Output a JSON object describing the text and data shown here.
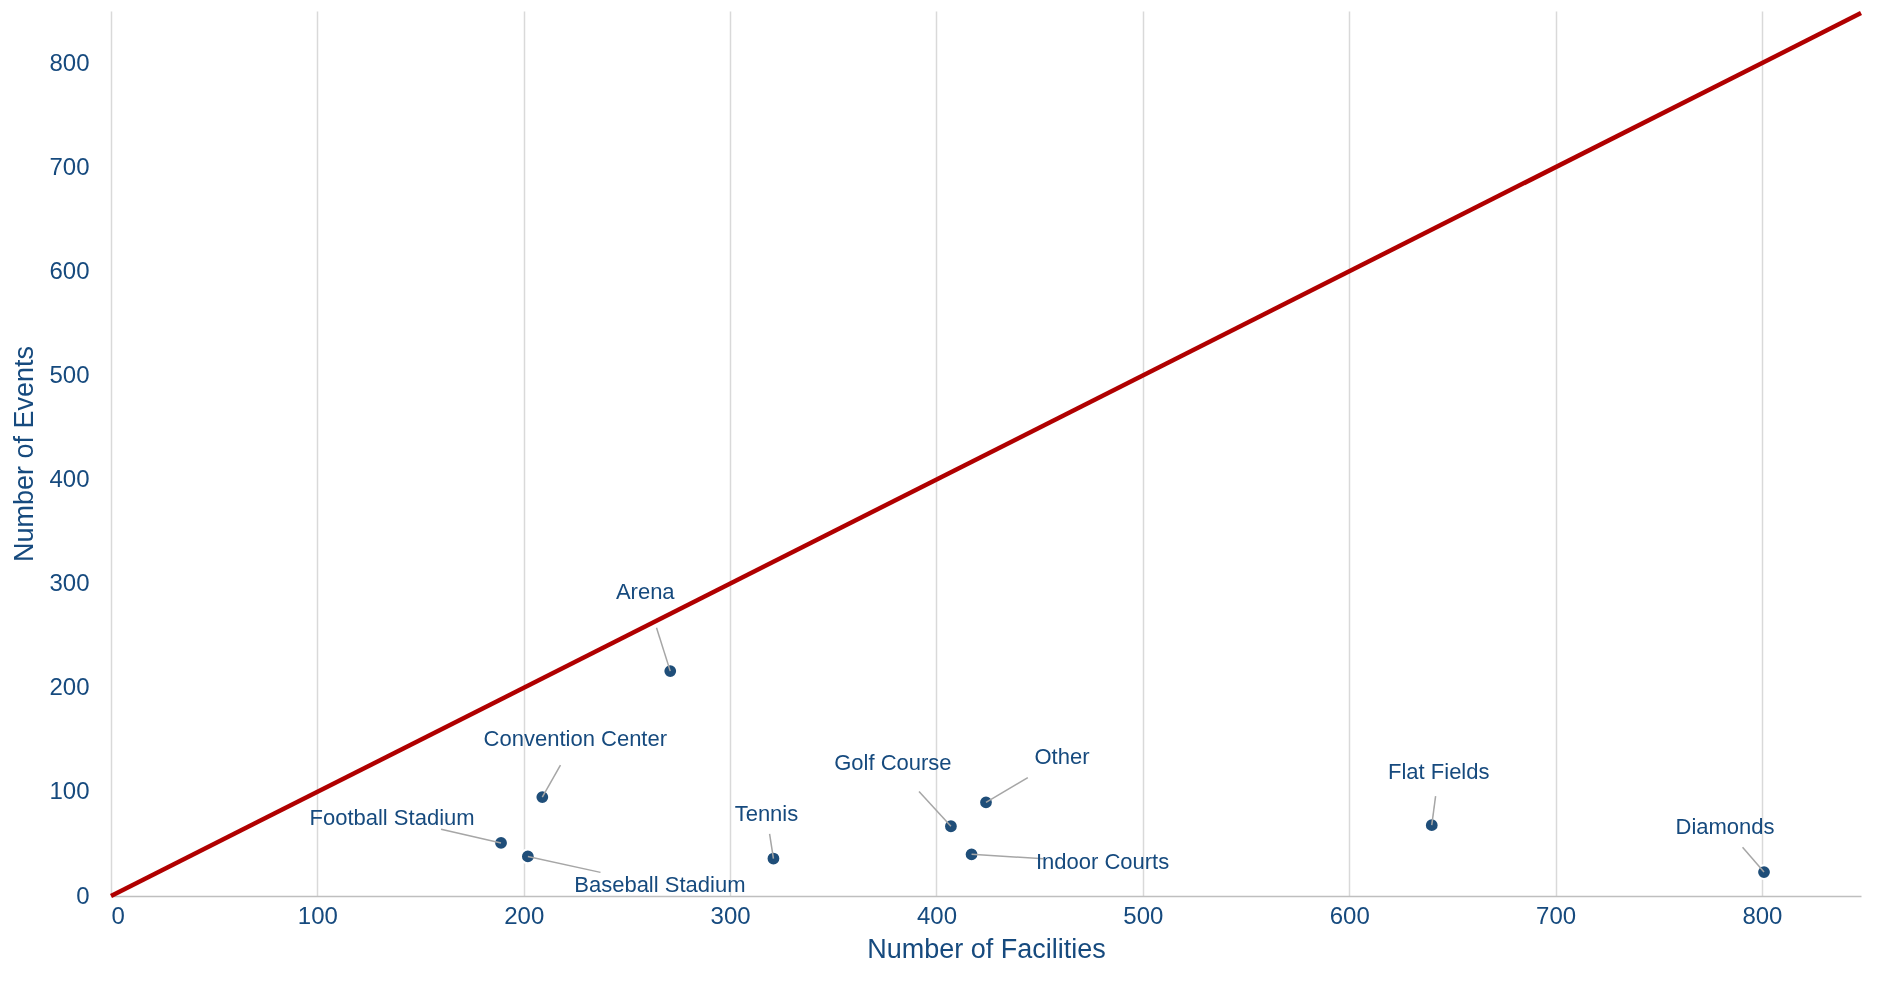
{
  "chart_data": {
    "type": "scatter",
    "xlabel": "Number of Facilities",
    "ylabel": "Number of Events",
    "xlim": [
      0,
      848
    ],
    "ylim": [
      0,
      850
    ],
    "xticks": [
      0,
      100,
      200,
      300,
      400,
      500,
      600,
      700,
      800
    ],
    "yticks": [
      0,
      100,
      200,
      300,
      400,
      500,
      600,
      700,
      800
    ],
    "grid": "x",
    "series": [
      {
        "marker": "circle",
        "color": "#1f4e79",
        "x": [
          271,
          209,
          189,
          202,
          321,
          407,
          424,
          417,
          640,
          801
        ],
        "values": [
          216,
          95,
          51,
          38,
          36,
          67,
          90,
          40,
          68,
          23
        ]
      },
      {
        "type": "line",
        "color": "#b00000",
        "x": [
          0,
          848
        ],
        "values": [
          0,
          848
        ]
      }
    ],
    "annotations": [
      {
        "text": "Arena",
        "x": 271,
        "y": 216
      },
      {
        "text": "Convention Center",
        "x": 209,
        "y": 95
      },
      {
        "text": "Football Stadium",
        "x": 189,
        "y": 51
      },
      {
        "text": "Baseball Stadium",
        "x": 202,
        "y": 38
      },
      {
        "text": "Tennis",
        "x": 321,
        "y": 36
      },
      {
        "text": "Golf Course",
        "x": 407,
        "y": 67
      },
      {
        "text": "Other",
        "x": 424,
        "y": 90
      },
      {
        "text": "Indoor Courts",
        "x": 417,
        "y": 40
      },
      {
        "text": "Flat Fields",
        "x": 640,
        "y": 68
      },
      {
        "text": "Diamonds",
        "x": 801,
        "y": 23
      }
    ]
  }
}
